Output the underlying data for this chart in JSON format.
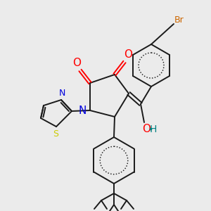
{
  "bg_color": "#ebebeb",
  "bond_color": "#1a1a1a",
  "atom_colors": {
    "O": "#ff0000",
    "N": "#0000dd",
    "S": "#cccc00",
    "Br": "#cc6600",
    "H": "#008080",
    "C": "#1a1a1a"
  },
  "figsize": [
    3.0,
    3.0
  ],
  "dpi": 100,
  "lw": 1.4
}
